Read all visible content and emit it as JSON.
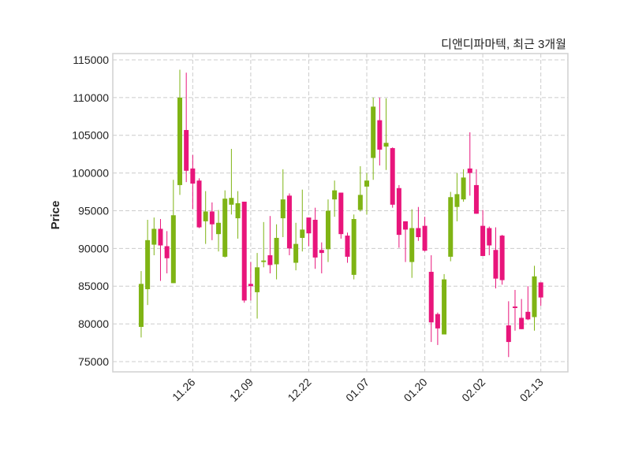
{
  "chart_data": {
    "type": "candlestick",
    "title": "디앤디파마텍, 최근 3개월",
    "xlabel": "",
    "ylabel": "Price",
    "ylim": [
      73640,
      115835
    ],
    "xlim": [
      -4.4,
      66.2
    ],
    "yticks": [
      75000,
      80000,
      85000,
      90000,
      95000,
      100000,
      105000,
      110000,
      115000
    ],
    "xticks": [
      {
        "index": 8,
        "label": "11.26"
      },
      {
        "index": 17,
        "label": "12.09"
      },
      {
        "index": 26,
        "label": "12.22"
      },
      {
        "index": 35,
        "label": "01.07"
      },
      {
        "index": 44,
        "label": "01.20"
      },
      {
        "index": 53,
        "label": "02.02"
      },
      {
        "index": 62,
        "label": "02.13"
      }
    ],
    "grid": true,
    "colors": {
      "up": "#7fb414",
      "down": "#e8157b",
      "grid": "#cccccc",
      "frame": "#d0d0d0"
    },
    "ohlc": [
      [
        79600,
        87000,
        78200,
        85300
      ],
      [
        84600,
        93800,
        82500,
        91100
      ],
      [
        90500,
        94100,
        89100,
        92600
      ],
      [
        92600,
        93900,
        85700,
        90400
      ],
      [
        90300,
        92300,
        86700,
        88700
      ],
      [
        85400,
        99100,
        85400,
        94400
      ],
      [
        98400,
        113700,
        97100,
        110000
      ],
      [
        105700,
        113300,
        98800,
        100300
      ],
      [
        100600,
        102400,
        95200,
        98600
      ],
      [
        99000,
        99300,
        92700,
        92800
      ],
      [
        93600,
        97600,
        90600,
        94900
      ],
      [
        94900,
        96100,
        91100,
        93200
      ],
      [
        91900,
        95100,
        89600,
        93400
      ],
      [
        88900,
        97700,
        88800,
        96600
      ],
      [
        95800,
        103200,
        94500,
        96700
      ],
      [
        94000,
        97600,
        91300,
        96000
      ],
      [
        96200,
        96200,
        82800,
        83100
      ],
      [
        85300,
        88200,
        83100,
        85000
      ],
      [
        84200,
        89400,
        80700,
        87500
      ],
      [
        88200,
        93500,
        87500,
        88400
      ],
      [
        89100,
        94300,
        86700,
        87800
      ],
      [
        87900,
        93200,
        85900,
        91400
      ],
      [
        94000,
        100500,
        91500,
        96500
      ],
      [
        97000,
        97300,
        89100,
        90000
      ],
      [
        88100,
        93400,
        87100,
        90600
      ],
      [
        91400,
        97800,
        89600,
        92500
      ],
      [
        94100,
        94100,
        90300,
        92000
      ],
      [
        93800,
        95400,
        87300,
        88800
      ],
      [
        89800,
        90800,
        86700,
        89400
      ],
      [
        89900,
        96500,
        88200,
        95000
      ],
      [
        96500,
        99000,
        94200,
        97700
      ],
      [
        97400,
        97400,
        91300,
        91900
      ],
      [
        91700,
        92100,
        88100,
        88900
      ],
      [
        86500,
        94500,
        85900,
        93900
      ],
      [
        95100,
        100900,
        94900,
        97100
      ],
      [
        98200,
        100000,
        94500,
        99000
      ],
      [
        102000,
        110000,
        99100,
        108800
      ],
      [
        107000,
        110000,
        101000,
        103100
      ],
      [
        103500,
        109900,
        100400,
        104000
      ],
      [
        103300,
        103400,
        95400,
        95800
      ],
      [
        98000,
        98400,
        90100,
        91800
      ],
      [
        93600,
        93600,
        88200,
        92500
      ],
      [
        88200,
        95200,
        86100,
        92700
      ],
      [
        92700,
        95500,
        91000,
        91500
      ],
      [
        93000,
        94200,
        89600,
        89700
      ],
      [
        86900,
        89100,
        77600,
        80200
      ],
      [
        81300,
        81500,
        77200,
        79400
      ],
      [
        78600,
        86600,
        78600,
        85900
      ],
      [
        88900,
        97500,
        88300,
        96800
      ],
      [
        95500,
        100000,
        93600,
        97200
      ],
      [
        96500,
        100500,
        96200,
        99400
      ],
      [
        100600,
        105400,
        97000,
        100000
      ],
      [
        98400,
        100500,
        94600,
        94600
      ],
      [
        93000,
        95100,
        89000,
        89000
      ],
      [
        92700,
        92900,
        89100,
        90400
      ],
      [
        89800,
        92800,
        84700,
        86000
      ],
      [
        91700,
        91800,
        85200,
        85800
      ],
      [
        79800,
        83000,
        75600,
        77600
      ],
      [
        82300,
        84500,
        79100,
        82100
      ],
      [
        80800,
        83300,
        79300,
        79300
      ],
      [
        81600,
        85000,
        80500,
        80600
      ],
      [
        80900,
        87700,
        79100,
        86300
      ],
      [
        85500,
        85500,
        82400,
        83500
      ]
    ]
  }
}
